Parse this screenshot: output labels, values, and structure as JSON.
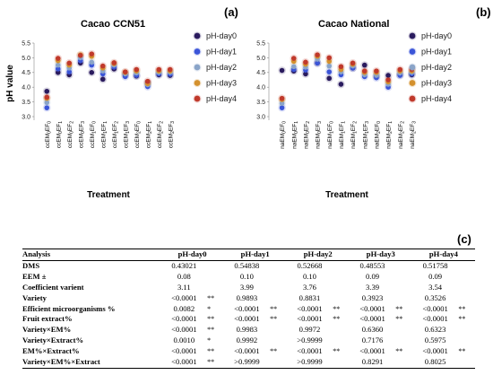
{
  "chart_data": [
    {
      "type": "scatter",
      "title": "Cacao CCN51",
      "panel": "(a)",
      "xlabel": "Treatment",
      "ylabel": "pH value",
      "ylim": [
        3.0,
        5.5
      ],
      "yticks": [
        "3.0",
        "3.5",
        "4.0",
        "4.5",
        "5.0",
        "5.5"
      ],
      "categories": [
        "ccEM0EF0",
        "ccEM0EF1",
        "ccEM0EF2",
        "ccEM0EF3",
        "ccEM1EF0",
        "ccEM1EF1",
        "ccEM1EF2",
        "ccEM1EF3",
        "ccEM2EF0",
        "ccEM2EF1",
        "ccEM2EF2",
        "ccEM2EF3"
      ],
      "category_labels": [
        {
          "pre": "ccEM",
          "s1": "0",
          "mid": "EF",
          "s2": "0"
        },
        {
          "pre": "ccEM",
          "s1": "0",
          "mid": "EF",
          "s2": "1"
        },
        {
          "pre": "ccEM",
          "s1": "0",
          "mid": "EF",
          "s2": "2"
        },
        {
          "pre": "ccEM",
          "s1": "0",
          "mid": "EF",
          "s2": "3"
        },
        {
          "pre": "ccEM",
          "s1": "1",
          "mid": "EF",
          "s2": "0"
        },
        {
          "pre": "ccEM",
          "s1": "1",
          "mid": "EF",
          "s2": "1"
        },
        {
          "pre": "ccEM",
          "s1": "1",
          "mid": "EF",
          "s2": "2"
        },
        {
          "pre": "ccEM",
          "s1": "1",
          "mid": "EF",
          "s2": "3"
        },
        {
          "pre": "ccEM",
          "s1": "2",
          "mid": "EF",
          "s2": "0"
        },
        {
          "pre": "ccEM",
          "s1": "2",
          "mid": "EF",
          "s2": "1"
        },
        {
          "pre": "ccEM",
          "s1": "2",
          "mid": "EF",
          "s2": "2"
        },
        {
          "pre": "ccEM",
          "s1": "2",
          "mid": "EF",
          "s2": "3"
        }
      ],
      "series": [
        {
          "name": "pH-day0",
          "color": "#2a1b5e",
          "values": [
            3.86,
            4.5,
            4.42,
            4.82,
            4.5,
            4.27,
            4.62,
            4.42,
            4.38,
            4.15,
            4.42,
            4.4
          ]
        },
        {
          "name": "pH-day1",
          "color": "#3b55d8",
          "values": [
            3.3,
            4.62,
            4.52,
            4.9,
            4.75,
            4.45,
            4.68,
            4.36,
            4.4,
            4.02,
            4.45,
            4.44
          ]
        },
        {
          "name": "pH-day2",
          "color": "#8aa4c8",
          "values": [
            3.48,
            4.75,
            4.65,
            5.0,
            4.85,
            4.55,
            4.75,
            4.45,
            4.48,
            4.08,
            4.5,
            4.5
          ]
        },
        {
          "name": "pH-day3",
          "color": "#d4912e",
          "values": [
            3.62,
            4.9,
            4.75,
            5.1,
            5.05,
            4.65,
            4.8,
            4.5,
            4.55,
            4.12,
            4.55,
            4.55
          ]
        },
        {
          "name": "pH-day4",
          "color": "#c0392b",
          "values": [
            3.66,
            4.98,
            4.82,
            5.08,
            5.13,
            4.72,
            4.83,
            4.52,
            4.6,
            4.2,
            4.6,
            4.6
          ]
        }
      ]
    },
    {
      "type": "scatter",
      "title": "Cacao National",
      "panel": "(b)",
      "xlabel": "Treatment",
      "ylabel": "",
      "ylim": [
        3.0,
        5.5
      ],
      "yticks": [
        "3.0",
        "3.5",
        "4.0",
        "4.5",
        "5.0",
        "5.5"
      ],
      "categories": [
        "naEM0EF0",
        "naEM0EF1",
        "naEM0EF2",
        "naEM0EF3",
        "naEM1EF0",
        "naEM1EF1",
        "naEM1EF2",
        "naEM1EF3",
        "naEM2EF0",
        "naEM2EF1",
        "naEM2EF2",
        "naEM2EF3"
      ],
      "category_labels": [
        {
          "pre": "naEM",
          "s1": "0",
          "mid": "EF",
          "s2": "0"
        },
        {
          "pre": "naEM",
          "s1": "0",
          "mid": "EF",
          "s2": "1"
        },
        {
          "pre": "naEM",
          "s1": "0",
          "mid": "EF",
          "s2": "2"
        },
        {
          "pre": "naEM",
          "s1": "0",
          "mid": "EF",
          "s2": "3"
        },
        {
          "pre": "naEM",
          "s1": "1",
          "mid": "EF",
          "s2": "0"
        },
        {
          "pre": "naEM",
          "s1": "1",
          "mid": "EF",
          "s2": "1"
        },
        {
          "pre": "naEM",
          "s1": "1",
          "mid": "EF",
          "s2": "2"
        },
        {
          "pre": "naEM",
          "s1": "1",
          "mid": "EF",
          "s2": "3"
        },
        {
          "pre": "naEM",
          "s1": "2",
          "mid": "EF",
          "s2": "0"
        },
        {
          "pre": "naEM",
          "s1": "2",
          "mid": "EF",
          "s2": "1"
        },
        {
          "pre": "naEM",
          "s1": "2",
          "mid": "EF",
          "s2": "2"
        },
        {
          "pre": "naEM",
          "s1": "2",
          "mid": "EF",
          "s2": "3"
        }
      ],
      "series": [
        {
          "name": "pH-day0",
          "color": "#2a1b5e",
          "values": [
            4.57,
            4.55,
            4.45,
            4.82,
            4.3,
            4.1,
            4.65,
            4.75,
            4.38,
            4.4,
            4.42,
            4.42
          ]
        },
        {
          "name": "pH-day1",
          "color": "#3b55d8",
          "values": [
            3.3,
            4.6,
            4.58,
            4.82,
            4.52,
            4.42,
            4.65,
            4.36,
            4.32,
            4.0,
            4.4,
            4.45
          ]
        },
        {
          "name": "pH-day2",
          "color": "#8aa4c8",
          "values": [
            3.45,
            4.7,
            4.68,
            4.95,
            4.72,
            4.52,
            4.72,
            4.42,
            4.4,
            4.1,
            4.48,
            4.5
          ]
        },
        {
          "name": "pH-day3",
          "color": "#d4912e",
          "values": [
            3.58,
            4.88,
            4.78,
            5.05,
            4.88,
            4.6,
            4.78,
            4.5,
            4.5,
            4.18,
            4.55,
            4.55
          ]
        },
        {
          "name": "pH-day4",
          "color": "#c0392b",
          "values": [
            3.62,
            4.98,
            4.85,
            5.1,
            5.0,
            4.7,
            4.82,
            4.55,
            4.55,
            4.25,
            4.6,
            4.6
          ]
        }
      ]
    },
    {
      "type": "table",
      "panel": "(c)",
      "columns": [
        "Analysis",
        "pH-day0",
        "pH-day1",
        "pH-day2",
        "pH-day3",
        "pH-day4"
      ],
      "rows": [
        {
          "label": "DMS",
          "cells": [
            [
              "0.43021",
              ""
            ],
            [
              "0.54838",
              ""
            ],
            [
              "0.52668",
              ""
            ],
            [
              "0.48553",
              ""
            ],
            [
              "0.51758",
              ""
            ]
          ]
        },
        {
          "label": "EEM ±",
          "cells": [
            [
              "0.08",
              ""
            ],
            [
              "0.10",
              ""
            ],
            [
              "0.10",
              ""
            ],
            [
              "0.09",
              ""
            ],
            [
              "0.09",
              ""
            ]
          ]
        },
        {
          "label": "Coefficient varient",
          "cells": [
            [
              "3.11",
              ""
            ],
            [
              "3.99",
              ""
            ],
            [
              "3.76",
              ""
            ],
            [
              "3.39",
              ""
            ],
            [
              "3.54",
              ""
            ]
          ]
        },
        {
          "label": "Variety",
          "cells": [
            [
              "<0.0001",
              "**"
            ],
            [
              "0.9893",
              ""
            ],
            [
              "0.8831",
              ""
            ],
            [
              "0.3923",
              ""
            ],
            [
              "0.3526",
              ""
            ]
          ]
        },
        {
          "label": "Efficient microorganisms %",
          "cells": [
            [
              "0.0082",
              "*"
            ],
            [
              "<0.0001",
              "**"
            ],
            [
              "<0.0001",
              "**"
            ],
            [
              "<0.0001",
              "**"
            ],
            [
              "<0.0001",
              "**"
            ]
          ]
        },
        {
          "label": "Fruit extract%",
          "cells": [
            [
              "<0.0001",
              "**"
            ],
            [
              "<0.0001",
              "**"
            ],
            [
              "<0.0001",
              "**"
            ],
            [
              "<0.0001",
              "**"
            ],
            [
              "<0.0001",
              "**"
            ]
          ]
        },
        {
          "label": "Variety×EM%",
          "cells": [
            [
              "<0.0001",
              "**"
            ],
            [
              "0.9983",
              ""
            ],
            [
              "0.9972",
              ""
            ],
            [
              "0.6360",
              ""
            ],
            [
              "0.6323",
              ""
            ]
          ]
        },
        {
          "label": "Variety×Extract%",
          "cells": [
            [
              "0.0010",
              "*"
            ],
            [
              "0.9992",
              ""
            ],
            [
              ">0.9999",
              ""
            ],
            [
              "0.7176",
              ""
            ],
            [
              "0.5975",
              ""
            ]
          ]
        },
        {
          "label": "EM%×Extract%",
          "cells": [
            [
              "<0.0001",
              "**"
            ],
            [
              "<0.0001",
              "**"
            ],
            [
              "<0.0001",
              "**"
            ],
            [
              "<0.0001",
              "**"
            ],
            [
              "<0.0001",
              "**"
            ]
          ]
        },
        {
          "label": "Variety×EM%×Extract",
          "cells": [
            [
              "<0.0001",
              "**"
            ],
            [
              ">0.9999",
              ""
            ],
            [
              ">0.9999",
              ""
            ],
            [
              "0.8291",
              ""
            ],
            [
              "0.8025",
              ""
            ]
          ]
        }
      ]
    }
  ]
}
